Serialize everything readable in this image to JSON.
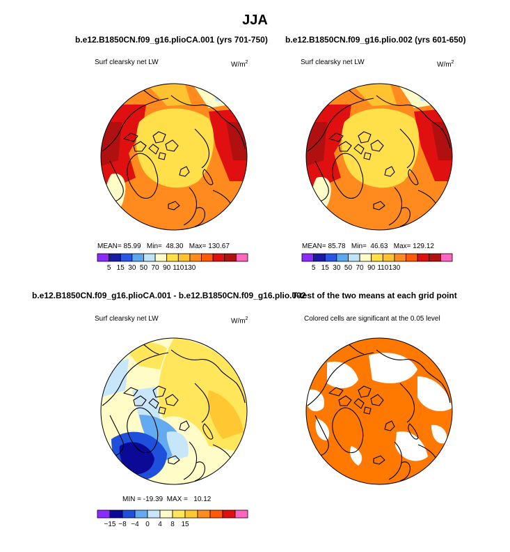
{
  "figure": {
    "title": "JJA"
  },
  "panels": {
    "p1": {
      "title": "b.e12.B1850CN.f09_g16.plioCA.001 (yrs 701-750)",
      "variable": "Surf clearsky net LW",
      "units_base": "W/m",
      "units_exp": "2",
      "stats": {
        "mean_label": "MEAN=",
        "mean": "85.99",
        "min_label": "Min=",
        "min": "48.30",
        "max_label": "Max=",
        "max": "130.67"
      }
    },
    "p2": {
      "title": "b.e12.B1850CN.f09_g16.plio.002 (yrs 601-650)",
      "variable": "Surf clearsky net LW",
      "units_base": "W/m",
      "units_exp": "2",
      "stats": {
        "mean_label": "MEAN=",
        "mean": "85.78",
        "min_label": "Min=",
        "min": "46.63",
        "max_label": "Max=",
        "max": "129.12"
      }
    },
    "p3": {
      "title": "b.e12.B1850CN.f09_g16.plioCA.001 - b.e12.B1850CN.f09_g16.plio.002",
      "variable": "Surf clearsky net LW",
      "units_base": "W/m",
      "units_exp": "2",
      "stats": {
        "min_label": "MIN =",
        "min": "-19.39",
        "max_label": "MAX =",
        "max": "10.12"
      }
    },
    "p4": {
      "title": "T-test of the two means at each grid point",
      "subtitle": "Colored cells are significant at the 0.05 level"
    }
  },
  "chart_data": [
    {
      "type": "heatmap",
      "title": "b.e12.B1850CN.f09_g16.plioCA.001 (yrs 701-750)",
      "projection": "north polar stereographic",
      "variable": "Surf clearsky net LW",
      "units": "W/m2",
      "mean": 85.99,
      "min": 48.3,
      "max": 130.67,
      "colorbar": {
        "levels": [
          5,
          15,
          30,
          50,
          70,
          90,
          110,
          130
        ],
        "labels": [
          "5",
          "15",
          "30",
          "50",
          "70",
          "90",
          "110",
          "130"
        ],
        "colors": [
          "#8c2bff",
          "#1a1aa6",
          "#2b55e6",
          "#5aa9f0",
          "#bfe3f7",
          "#fffcc8",
          "#ffe04a",
          "#ffc230",
          "#ff8a1e",
          "#ff5a0a",
          "#e01010",
          "#b01010",
          "#ff66c0"
        ]
      }
    },
    {
      "type": "heatmap",
      "title": "b.e12.B1850CN.f09_g16.plio.002 (yrs 601-650)",
      "projection": "north polar stereographic",
      "variable": "Surf clearsky net LW",
      "units": "W/m2",
      "mean": 85.78,
      "min": 46.63,
      "max": 129.12,
      "colorbar": {
        "levels": [
          5,
          15,
          30,
          50,
          70,
          90,
          110,
          130
        ],
        "labels": [
          "5",
          "15",
          "30",
          "50",
          "70",
          "90",
          "110",
          "130"
        ],
        "colors": [
          "#8c2bff",
          "#1a1aa6",
          "#2b55e6",
          "#5aa9f0",
          "#bfe3f7",
          "#fffcc8",
          "#ffe04a",
          "#ffc230",
          "#ff8a1e",
          "#ff5a0a",
          "#e01010",
          "#b01010",
          "#ff66c0"
        ]
      }
    },
    {
      "type": "heatmap",
      "title": "b.e12.B1850CN.f09_g16.plioCA.001 - b.e12.B1850CN.f09_g16.plio.002",
      "projection": "north polar stereographic",
      "variable": "Surf clearsky net LW",
      "units": "W/m2",
      "min": -19.39,
      "max": 10.12,
      "colorbar": {
        "levels": [
          -15,
          -8,
          -4,
          0,
          4,
          8,
          15
        ],
        "labels": [
          "-15",
          "-8",
          "-4",
          "0",
          "4",
          "8",
          "15"
        ],
        "colors": [
          "#8c2bff",
          "#0a0a96",
          "#1e50dc",
          "#64aaf0",
          "#c8e6fa",
          "#fffcc8",
          "#ffe65a",
          "#ffc832",
          "#ff8c1e",
          "#ff5a0a",
          "#e01010",
          "#ff66c0"
        ]
      }
    },
    {
      "type": "heatmap",
      "title": "T-test of the two means at each grid point",
      "subtitle": "Colored cells are significant at the 0.05 level",
      "projection": "north polar stereographic",
      "significance_level": 0.05,
      "colors": {
        "significant": "#ff7800",
        "not_significant": "#ffffff"
      }
    }
  ]
}
